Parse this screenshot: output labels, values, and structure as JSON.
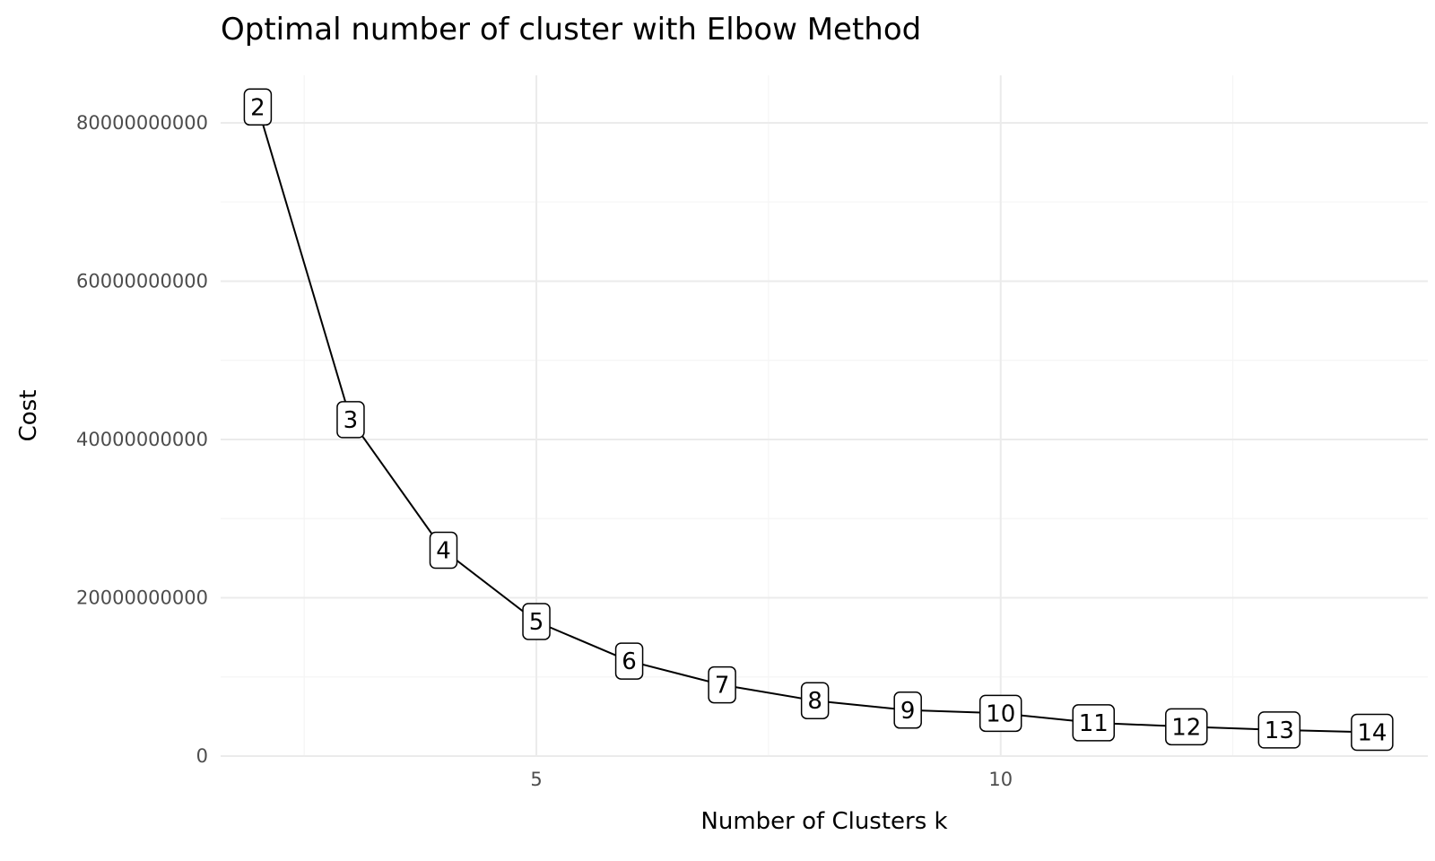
{
  "chart_data": {
    "type": "line",
    "title": "Optimal number of cluster with Elbow Method",
    "xlabel": "Number of Clusters k",
    "ylabel": "Cost",
    "x": [
      2,
      3,
      4,
      5,
      6,
      7,
      8,
      9,
      10,
      11,
      12,
      13,
      14
    ],
    "values": [
      82000000000,
      42500000000,
      26000000000,
      17000000000,
      12000000000,
      9000000000,
      7000000000,
      5800000000,
      5400000000,
      4200000000,
      3700000000,
      3300000000,
      3000000000
    ],
    "point_labels": [
      "2",
      "3",
      "4",
      "5",
      "6",
      "7",
      "8",
      "9",
      "10",
      "11",
      "12",
      "13",
      "14"
    ],
    "x_ticks": [
      5,
      10
    ],
    "x_tick_labels": [
      "5",
      "10"
    ],
    "y_ticks": [
      0,
      20000000000,
      40000000000,
      60000000000,
      80000000000
    ],
    "y_tick_labels": [
      "0",
      "20000000000",
      "40000000000",
      "60000000000",
      "80000000000"
    ],
    "xlim": [
      1.6,
      14.6
    ],
    "ylim": [
      0,
      86000000000
    ],
    "grid": true,
    "legend": "none",
    "colors": {
      "line": "#000000",
      "grid": "#ebebeb",
      "tick_text": "#4d4d4d"
    }
  }
}
